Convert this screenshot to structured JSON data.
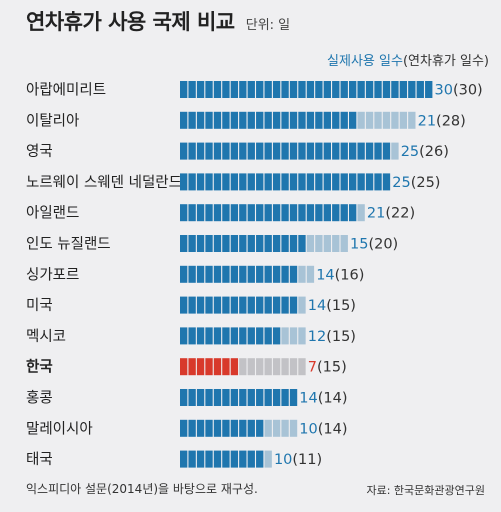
{
  "header": {
    "title": "연차휴가 사용 국제 비교",
    "unit": "단위: 일"
  },
  "legend": {
    "actual": "실제사용 일수",
    "entitled": "(연차휴가 일수)"
  },
  "footer": {
    "note": "익스피디아 설문(2014년)을 바탕으로 재구성.",
    "source": "자료: 한국문화관광연구원"
  },
  "colors": {
    "actual": "#1f76ae",
    "entitled": "#a8c3d6",
    "highlight_actual": "#d8392b",
    "highlight_entitled": "#c2c2c6",
    "highlight_text": "#d8392b",
    "value_text": "#1f76ae"
  },
  "chart_data": {
    "type": "bar",
    "orientation": "horizontal",
    "highlight": "한국",
    "xlim": [
      0,
      30
    ],
    "categories": [
      "아랍에미리트",
      "이탈리아",
      "영국",
      "노르웨이 스웨덴 네덜란드",
      "아일랜드",
      "인도 뉴질랜드",
      "싱가포르",
      "미국",
      "멕시코",
      "한국",
      "홍콩",
      "말레이시아",
      "태국"
    ],
    "series": [
      {
        "name": "실제사용 일수",
        "values": [
          30,
          21,
          25,
          25,
          21,
          15,
          14,
          14,
          12,
          7,
          14,
          10,
          10
        ]
      },
      {
        "name": "연차휴가 일수",
        "values": [
          30,
          28,
          26,
          25,
          22,
          20,
          16,
          15,
          15,
          15,
          14,
          14,
          11
        ]
      }
    ]
  }
}
